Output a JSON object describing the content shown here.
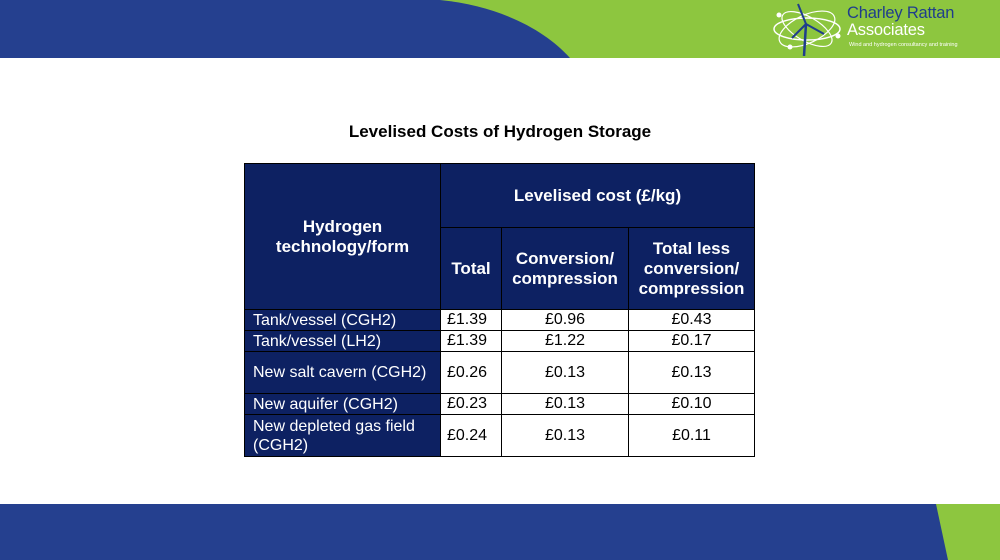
{
  "brand": {
    "name_line1": "Charley Rattan",
    "name_line2": "Associates",
    "tagline": "Wind and hydrogen consultancy and training",
    "colors": {
      "navy": "#25408f",
      "green": "#8dc63f",
      "table_header": "#0d2162"
    }
  },
  "table": {
    "title": "Levelised Costs of Hydrogen Storage",
    "header_tech": "Hydrogen technology/form",
    "header_group": "Levelised cost (£/kg)",
    "columns": [
      "Total",
      "Conversion/ compression",
      "Total less conversion/ compression"
    ],
    "rows": [
      {
        "tech": "Tank/vessel (CGH2)",
        "total": "£1.39",
        "conversion": "£0.96",
        "less": "£0.43"
      },
      {
        "tech": "Tank/vessel (LH2)",
        "total": "£1.39",
        "conversion": "£1.22",
        "less": "£0.17"
      },
      {
        "tech": "New salt cavern (CGH2)",
        "total": "£0.26",
        "conversion": "£0.13",
        "less": "£0.13"
      },
      {
        "tech": "New aquifer (CGH2)",
        "total": "£0.23",
        "conversion": "£0.13",
        "less": "£0.10"
      },
      {
        "tech": "New depleted gas field (CGH2)",
        "total": "£0.24",
        "conversion": "£0.13",
        "less": "£0.11"
      }
    ]
  }
}
